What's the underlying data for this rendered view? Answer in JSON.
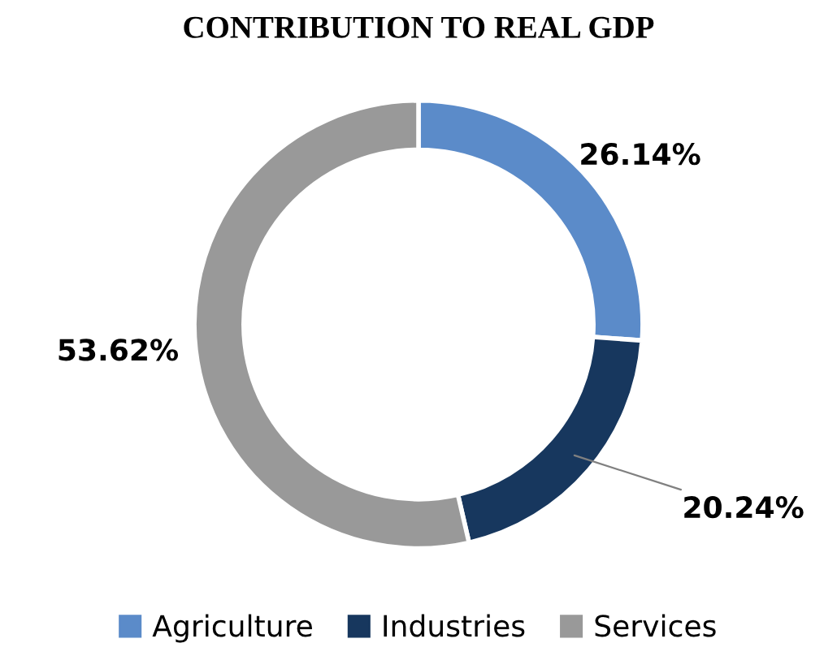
{
  "chart_data": {
    "type": "donut",
    "title": "CONTRIBUTION TO REAL GDP",
    "categories": [
      "Agriculture",
      "Industries",
      "Services"
    ],
    "values": [
      26.14,
      20.24,
      53.62
    ],
    "colors": [
      "#5b8bc9",
      "#17375e",
      "#999999"
    ],
    "value_labels": [
      "26.14%",
      "20.24%",
      "53.62%"
    ],
    "legend": "bottom"
  }
}
